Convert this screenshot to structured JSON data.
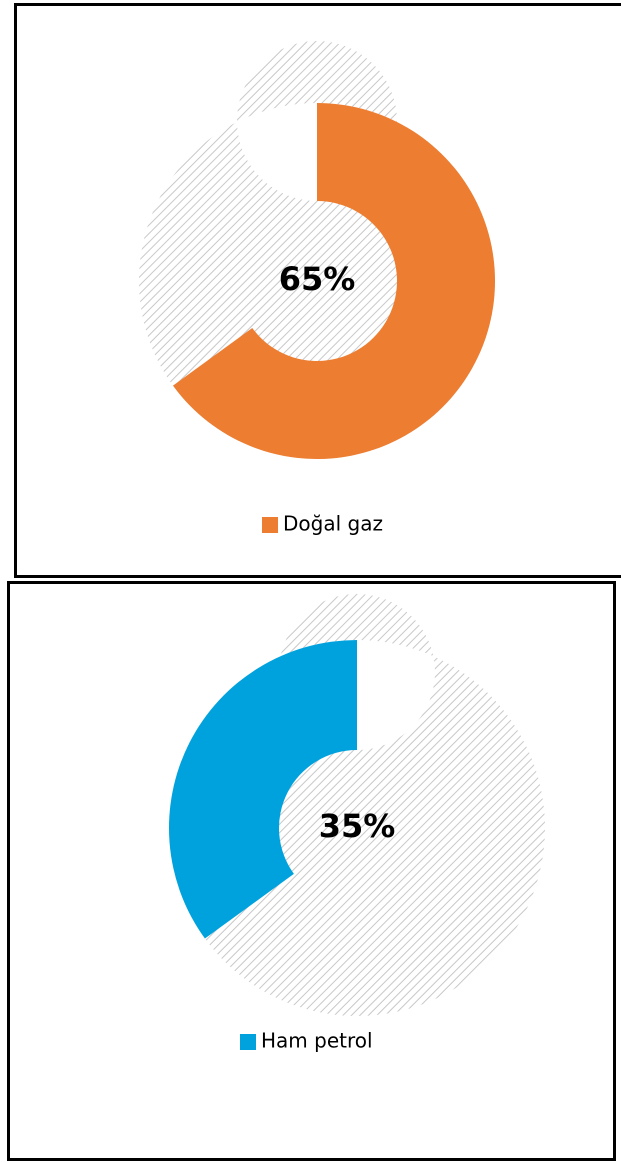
{
  "chart_data": [
    {
      "type": "pie",
      "donut": true,
      "direction": "clockwise",
      "categories": [
        "Doğal gaz"
      ],
      "values": [
        65
      ],
      "value_labels": [
        "65%"
      ],
      "color": "#ed7d31"
    },
    {
      "type": "pie",
      "donut": true,
      "direction": "counterclockwise",
      "categories": [
        "Ham petrol"
      ],
      "values": [
        35
      ],
      "value_labels": [
        "35%"
      ],
      "color": "#00a2de"
    }
  ]
}
